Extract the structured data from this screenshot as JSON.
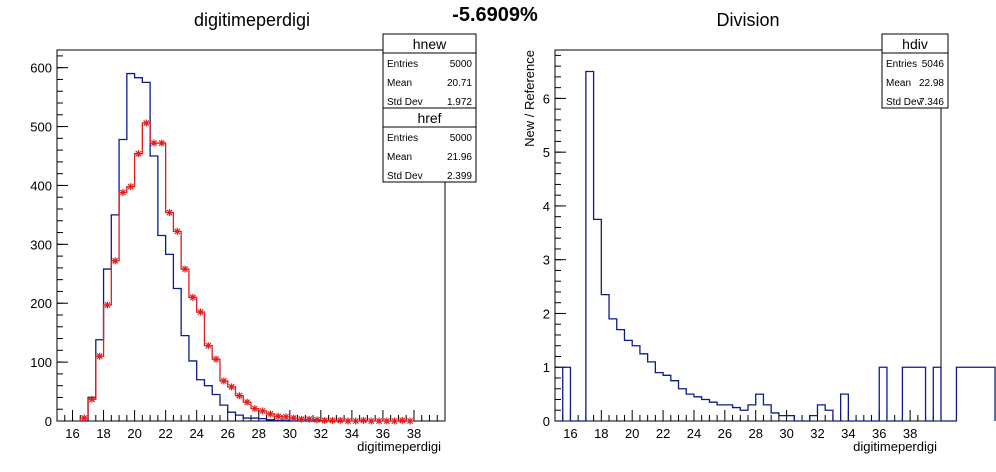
{
  "page": {
    "banner": "-5.6909%"
  },
  "chart_data": [
    {
      "type": "histogram",
      "title": "digitimeperdigi",
      "xlabel": "digitimeperdigi",
      "ylabel": "",
      "xlim": [
        15,
        40
      ],
      "ylim": [
        0,
        630
      ],
      "xticks": [
        16,
        18,
        20,
        22,
        24,
        26,
        28,
        30,
        32,
        34,
        36,
        38
      ],
      "yticks": [
        0,
        100,
        200,
        300,
        400,
        500,
        600
      ],
      "bin_width": 0.5,
      "series": [
        {
          "name": "hnew",
          "color": "#0b1b8c",
          "style": "step",
          "edges_start": 16.5,
          "values": [
            0,
            40,
            138,
            258,
            350,
            478,
            590,
            583,
            575,
            450,
            315,
            283,
            225,
            145,
            102,
            70,
            60,
            45,
            27,
            15,
            10,
            5,
            5,
            4,
            2,
            1,
            1,
            0,
            0,
            0,
            0
          ]
        },
        {
          "name": "href",
          "color": "#e11d1d",
          "style": "step-markers",
          "edges_start": 16.5,
          "values": [
            5,
            37,
            110,
            197,
            272,
            388,
            398,
            454,
            506,
            472,
            472,
            354,
            322,
            258,
            210,
            185,
            128,
            105,
            68,
            58,
            43,
            32,
            21,
            17,
            12,
            8,
            7,
            5,
            3,
            3,
            2,
            1,
            1,
            1,
            0,
            0,
            1,
            0,
            0,
            0,
            0,
            1,
            0
          ]
        }
      ],
      "stats": [
        {
          "name": "hnew",
          "rows": [
            [
              "Entries",
              "5000"
            ],
            [
              "Mean",
              "20.71"
            ],
            [
              "Std Dev",
              "1.972"
            ]
          ]
        },
        {
          "name": "href",
          "rows": [
            [
              "Entries",
              "5000"
            ],
            [
              "Mean",
              "21.96"
            ],
            [
              "Std Dev",
              "2.399"
            ]
          ]
        }
      ]
    },
    {
      "type": "histogram",
      "title": "Division",
      "xlabel": "digitimeperdigi",
      "ylabel": "New / Reference",
      "xlim": [
        15,
        40
      ],
      "ylim": [
        0,
        6.9
      ],
      "xticks": [
        16,
        18,
        20,
        22,
        24,
        26,
        28,
        30,
        32,
        34,
        36,
        38
      ],
      "yticks": [
        0,
        1,
        2,
        3,
        4,
        5,
        6
      ],
      "bin_width": 0.5,
      "series": [
        {
          "name": "hdiv",
          "color": "#0b1b8c",
          "style": "step",
          "edges_start": 15,
          "values": [
            0,
            1,
            0,
            0,
            6.5,
            3.75,
            2.35,
            1.9,
            1.7,
            1.5,
            1.4,
            1.25,
            1.1,
            0.9,
            0.85,
            0.75,
            0.6,
            0.5,
            0.45,
            0.4,
            0.35,
            0.3,
            0.3,
            0.25,
            0.2,
            0.3,
            0.5,
            0.3,
            0.15,
            0.1,
            0.1,
            0,
            0,
            0.1,
            0.3,
            0.2,
            0,
            0.5,
            0,
            0,
            0,
            0,
            1,
            0,
            0,
            1,
            1,
            1,
            0,
            1,
            0,
            0,
            1,
            1,
            1,
            1,
            1
          ]
        }
      ],
      "stats": [
        {
          "name": "hdiv",
          "rows": [
            [
              "Entries",
              "5046"
            ],
            [
              "Mean",
              "22.98"
            ],
            [
              "Std Dev",
              "7.346"
            ]
          ]
        }
      ]
    }
  ]
}
